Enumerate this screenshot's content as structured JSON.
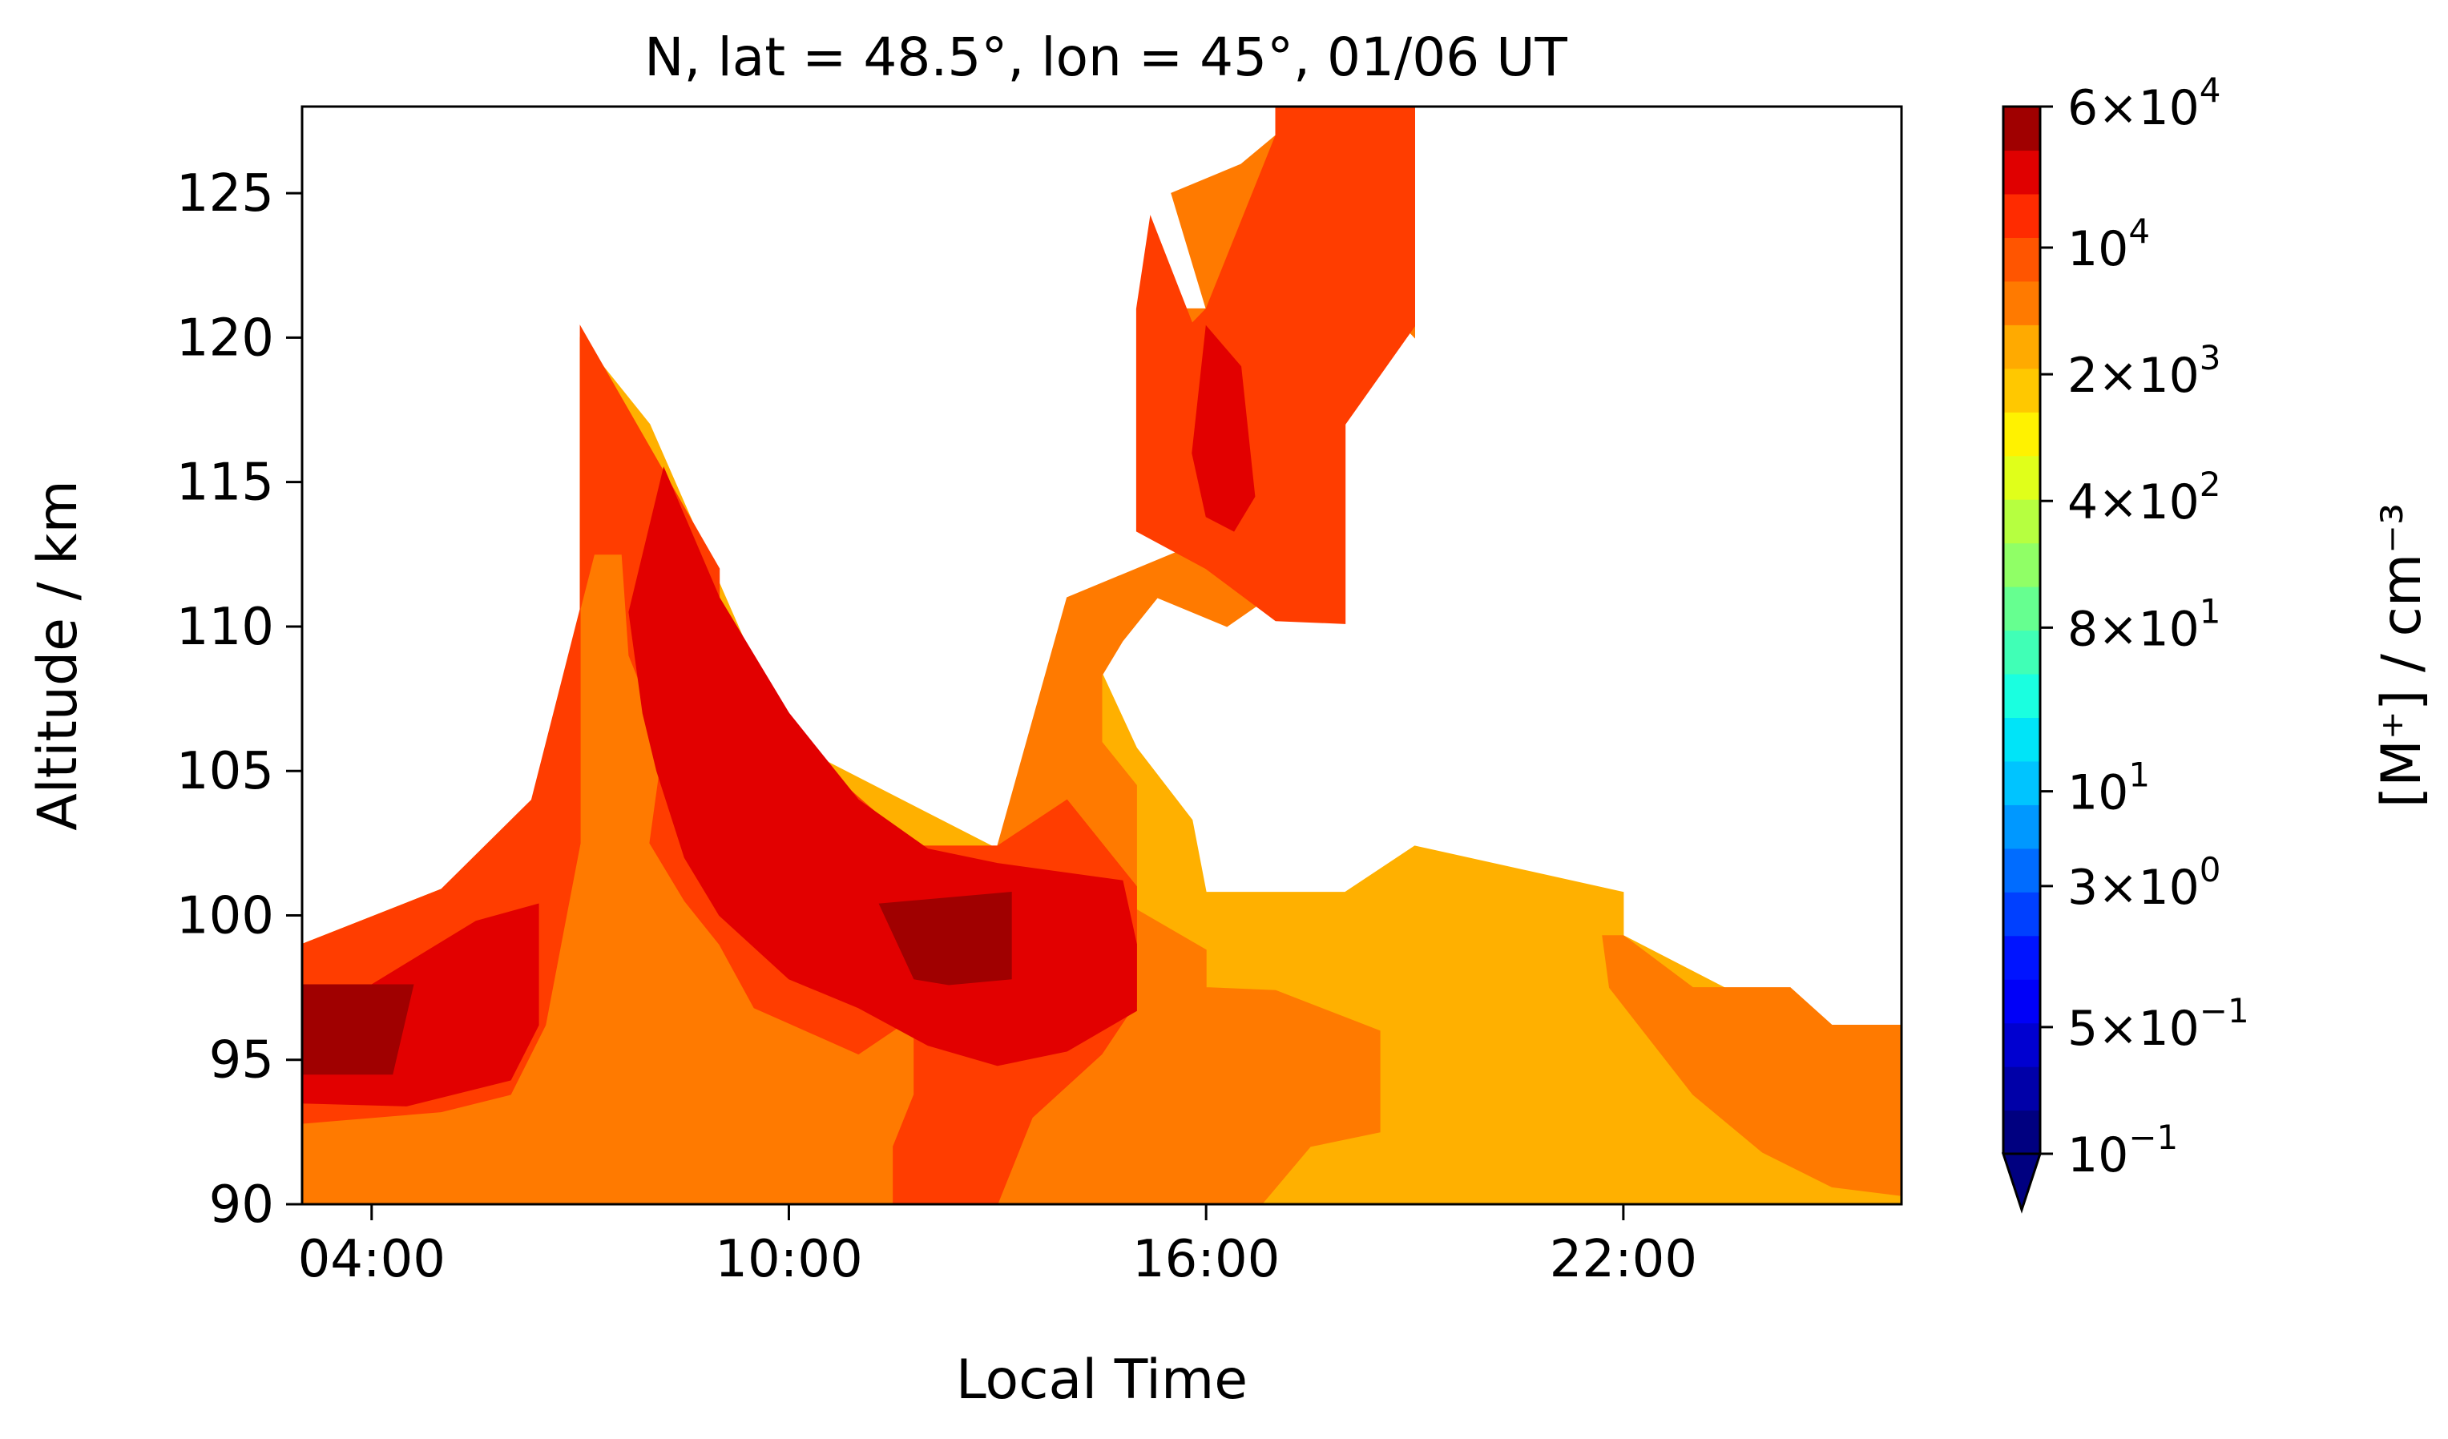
{
  "chart_data": {
    "type": "contour",
    "title": "N, lat = 48.5°, lon = 45°, 01/06 UT",
    "xlabel": "Local Time",
    "ylabel": "Altitude / km",
    "x_tick_labels": [
      "04:00",
      "10:00",
      "16:00",
      "22:00"
    ],
    "x_ticks_hours": [
      4,
      10,
      16,
      22
    ],
    "xlim_hours": [
      3.0,
      26.0
    ],
    "y_ticks": [
      90,
      95,
      100,
      105,
      110,
      115,
      120,
      125
    ],
    "ylim": [
      90,
      128
    ],
    "grid": false,
    "colorbar": {
      "label": "[M⁺] / cm⁻³",
      "scale": "log",
      "extend": "min",
      "tick_labels": [
        {
          "mantissa": "6",
          "times": "×",
          "base": "10",
          "exp": "4",
          "value": 60000
        },
        {
          "mantissa": "",
          "times": "",
          "base": "10",
          "exp": "4",
          "value": 10000
        },
        {
          "mantissa": "2",
          "times": "×",
          "base": "10",
          "exp": "3",
          "value": 2000
        },
        {
          "mantissa": "4",
          "times": "×",
          "base": "10",
          "exp": "2",
          "value": 400
        },
        {
          "mantissa": "8",
          "times": "×",
          "base": "10",
          "exp": "1",
          "value": 80
        },
        {
          "mantissa": "",
          "times": "",
          "base": "10",
          "exp": "1",
          "value": 10
        },
        {
          "mantissa": "3",
          "times": "×",
          "base": "10",
          "exp": "0",
          "value": 3
        },
        {
          "mantissa": "5",
          "times": "×",
          "base": "10",
          "exp": "−1",
          "value": 0.5
        },
        {
          "mantissa": "",
          "times": "",
          "base": "10",
          "exp": "−1",
          "value": 0.1
        }
      ],
      "levels_colors": [
        "#000080",
        "#0000a8",
        "#0000d0",
        "#0000f8",
        "#0014ff",
        "#0040ff",
        "#006cff",
        "#0098ff",
        "#00c4ff",
        "#00e4f8",
        "#1affe0",
        "#40ffb6",
        "#66ff90",
        "#90ff66",
        "#b6ff40",
        "#e0ff1a",
        "#fff200",
        "#ffc800",
        "#ffaa00",
        "#ff7a00",
        "#ff5500",
        "#ff2b00",
        "#e00000",
        "#a00000"
      ]
    },
    "regions": [
      {
        "level": "2e3-4e3",
        "color": "#ffb000",
        "polygon": [
          [
            3,
            90
          ],
          [
            26,
            90
          ],
          [
            26,
            96.2
          ],
          [
            24.5,
            96.2
          ],
          [
            22,
            99.3
          ],
          [
            22,
            100.8
          ],
          [
            19,
            102.4
          ],
          [
            18,
            100.8
          ],
          [
            16,
            100.8
          ],
          [
            15.8,
            103.3
          ],
          [
            15,
            105.8
          ],
          [
            14,
            111
          ],
          [
            14,
            104
          ],
          [
            13,
            102.3
          ],
          [
            10,
            106
          ],
          [
            8,
            117
          ],
          [
            7,
            120
          ],
          [
            7,
            104
          ],
          [
            5,
            100.9
          ],
          [
            3,
            99
          ]
        ]
      },
      {
        "level": "4e3-1e4",
        "color": "#ff7a00",
        "polygon": [
          [
            3,
            90
          ],
          [
            4,
            90
          ],
          [
            12,
            90
          ],
          [
            14.5,
            90
          ],
          [
            17,
            90
          ],
          [
            16.8,
            90
          ],
          [
            17.5,
            92
          ],
          [
            18.5,
            92.5
          ],
          [
            18.5,
            96
          ],
          [
            17,
            97.4
          ],
          [
            16,
            97.5
          ],
          [
            16,
            98.8
          ],
          [
            15,
            100.2
          ],
          [
            15,
            104.5
          ],
          [
            14.5,
            106
          ],
          [
            14.5,
            108.3
          ],
          [
            14.8,
            109.5
          ],
          [
            15.3,
            111
          ],
          [
            16.3,
            110
          ],
          [
            17.5,
            112
          ],
          [
            17.5,
            113
          ],
          [
            16.5,
            113
          ],
          [
            15.5,
            116
          ],
          [
            15.5,
            121
          ],
          [
            16,
            121
          ],
          [
            15.5,
            125
          ],
          [
            16.5,
            126
          ],
          [
            17.5,
            128
          ],
          [
            19,
            128
          ],
          [
            19,
            120
          ],
          [
            18.6,
            121
          ],
          [
            18,
            117
          ],
          [
            16,
            113
          ],
          [
            14,
            111
          ],
          [
            13,
            102.4
          ],
          [
            11.5,
            102.4
          ],
          [
            10,
            106
          ],
          [
            8,
            115
          ],
          [
            7,
            120
          ],
          [
            7,
            104
          ],
          [
            5,
            100.9
          ],
          [
            3,
            99
          ]
        ]
      },
      {
        "level": "4e3-1e4 (right band)",
        "color": "#ff7a00",
        "polygon": [
          [
            21.7,
            99.3
          ],
          [
            22,
            99.3
          ],
          [
            23,
            97.5
          ],
          [
            24.4,
            97.5
          ],
          [
            25,
            96.2
          ],
          [
            26,
            96.2
          ],
          [
            26,
            90.3
          ],
          [
            25,
            90.6
          ],
          [
            24,
            91.8
          ],
          [
            23,
            93.8
          ],
          [
            21.8,
            97.5
          ]
        ]
      },
      {
        "level": "1e4-2e4",
        "color": "#ff3d00",
        "polygon": [
          [
            3,
            92.8
          ],
          [
            5,
            93.2
          ],
          [
            6,
            93.8
          ],
          [
            6.5,
            96.2
          ],
          [
            6.8,
            100
          ],
          [
            7,
            102.5
          ],
          [
            7,
            114
          ],
          [
            7,
            120.4
          ],
          [
            9,
            112
          ],
          [
            9,
            110
          ],
          [
            10,
            107
          ],
          [
            10,
            106.2
          ],
          [
            11.8,
            102.4
          ],
          [
            13,
            102.4
          ],
          [
            14,
            104
          ],
          [
            15,
            101
          ],
          [
            15,
            97
          ],
          [
            14.5,
            95.2
          ],
          [
            13.5,
            93
          ],
          [
            13,
            90
          ],
          [
            11.5,
            90
          ],
          [
            11.5,
            92
          ],
          [
            11.8,
            93.8
          ],
          [
            11.8,
            96.5
          ],
          [
            11,
            95.2
          ],
          [
            9.5,
            96.8
          ],
          [
            9,
            99
          ],
          [
            8.5,
            100.5
          ],
          [
            8,
            102.5
          ],
          [
            8.2,
            106
          ],
          [
            7.7,
            109
          ],
          [
            7.6,
            112.5
          ],
          [
            7.2,
            112.5
          ],
          [
            6.3,
            104
          ],
          [
            5,
            100.9
          ],
          [
            3,
            99
          ]
        ]
      },
      {
        "level": "1e4-2e4 (upper)",
        "color": "#ff3d00",
        "polygon": [
          [
            15,
            113.3
          ],
          [
            16,
            112
          ],
          [
            17,
            110.2
          ],
          [
            18,
            110.1
          ],
          [
            18,
            117
          ],
          [
            19,
            120.4
          ],
          [
            19,
            128
          ],
          [
            17,
            128
          ],
          [
            17,
            127
          ],
          [
            16,
            121
          ],
          [
            15.8,
            120.5
          ],
          [
            15.2,
            124.2
          ],
          [
            15,
            121
          ]
        ]
      },
      {
        "level": "2e4-6e4",
        "color": "#e20000",
        "polygon": [
          [
            3,
            93.5
          ],
          [
            4.5,
            93.4
          ],
          [
            6,
            94.3
          ],
          [
            6.4,
            96.2
          ],
          [
            6.4,
            100.4
          ],
          [
            5.5,
            99.8
          ],
          [
            4,
            97.6
          ],
          [
            3,
            97.6
          ]
        ]
      },
      {
        "level": "2e4-6e4 (mid)",
        "color": "#e20000",
        "polygon": [
          [
            7.7,
            110.5
          ],
          [
            8.2,
            115.5
          ],
          [
            9,
            111
          ],
          [
            10,
            107
          ],
          [
            11,
            104
          ],
          [
            12,
            102.3
          ],
          [
            13,
            101.8
          ],
          [
            14.8,
            101.2
          ],
          [
            15,
            99
          ],
          [
            15,
            96.7
          ],
          [
            14,
            95.3
          ],
          [
            13,
            94.8
          ],
          [
            12,
            95.5
          ],
          [
            11,
            96.8
          ],
          [
            10,
            97.8
          ],
          [
            9,
            100
          ],
          [
            8.5,
            102
          ],
          [
            8.1,
            105
          ],
          [
            7.9,
            107
          ]
        ]
      },
      {
        "level": "2e4-6e4 (upper)",
        "color": "#e20000",
        "polygon": [
          [
            15.8,
            116
          ],
          [
            16,
            113.8
          ],
          [
            16.4,
            113.3
          ],
          [
            16.7,
            114.5
          ],
          [
            16.5,
            119
          ],
          [
            16,
            120.4
          ]
        ]
      },
      {
        "level": "> 6e4",
        "color": "#a00000",
        "polygon": [
          [
            3,
            94.5
          ],
          [
            4.3,
            94.5
          ],
          [
            4.6,
            97.6
          ],
          [
            3,
            97.6
          ]
        ]
      },
      {
        "level": "> 6e4 (mid)",
        "color": "#a00000",
        "polygon": [
          [
            11.3,
            100.4
          ],
          [
            13.2,
            100.8
          ],
          [
            13.2,
            97.8
          ],
          [
            12.3,
            97.6
          ],
          [
            11.8,
            97.8
          ]
        ]
      }
    ]
  }
}
